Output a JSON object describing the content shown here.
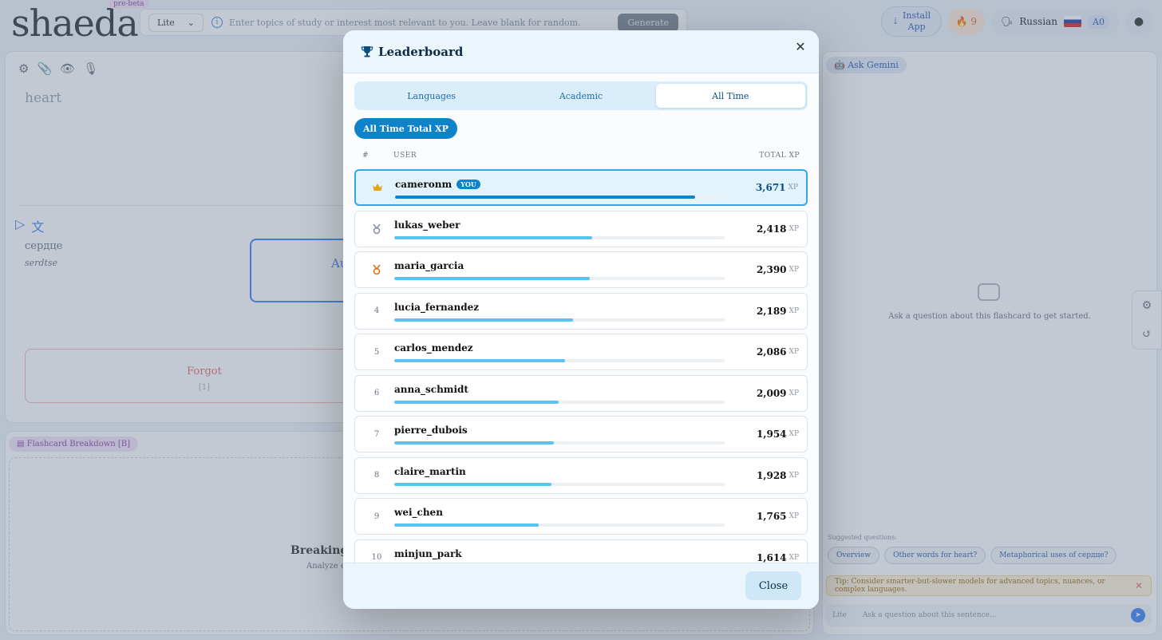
{
  "app": {
    "logo": "shaeda",
    "badge": "pre-beta",
    "model": "Lite",
    "topic_placeholder": "Enter topics of study or interest most relevant to you. Leave blank for random.",
    "generate_label": "Generate",
    "install_label": "Install App",
    "streak": "9",
    "language": "Russian",
    "level": "A0"
  },
  "card": {
    "front": "heart",
    "back": "сердце",
    "translit": "serdtse",
    "answer_partial": "Au",
    "forgot_label": "Forgot",
    "forgot_key": "[1]"
  },
  "breakdown": {
    "tag": "Flashcard Breakdown",
    "tag_key": "[B]",
    "title_partial": "Breaking th",
    "sub_partial": "Analyze eac"
  },
  "gemini": {
    "tag": "Ask Gemini",
    "empty_text": "Ask a question about this flashcard to get started.",
    "suggest_label": "Suggested questions:",
    "chips": [
      "Overview",
      "Other words for heart?",
      "Metaphorical uses of сердце?"
    ],
    "tip": "Tip: Consider smarter-but-slower models for advanced topics, nuances, or complex languages.",
    "ask_model": "Lite",
    "ask_placeholder": "Ask a question about this sentence..."
  },
  "modal": {
    "title": "Leaderboard",
    "tabs": [
      "Languages",
      "Academic",
      "All Time"
    ],
    "active_tab": "All Time",
    "filter_label": "All Time Total XP",
    "columns": {
      "rank": "#",
      "user": "USER",
      "xp": "TOTAL XP"
    },
    "xp_unit": "XP",
    "you_badge": "YOU",
    "close_label": "Close",
    "rows": [
      {
        "rank": "1",
        "medal": "crown",
        "user": "cameronm",
        "xp": "3,671",
        "xp_value": 3671,
        "is_me": true
      },
      {
        "rank": "2",
        "medal": "silver-medal",
        "user": "lukas_weber",
        "xp": "2,418",
        "xp_value": 2418
      },
      {
        "rank": "3",
        "medal": "bronze-medal",
        "user": "maria_garcia",
        "xp": "2,390",
        "xp_value": 2390
      },
      {
        "rank": "4",
        "user": "lucia_fernandez",
        "xp": "2,189",
        "xp_value": 2189
      },
      {
        "rank": "5",
        "user": "carlos_mendez",
        "xp": "2,086",
        "xp_value": 2086
      },
      {
        "rank": "6",
        "user": "anna_schmidt",
        "xp": "2,009",
        "xp_value": 2009
      },
      {
        "rank": "7",
        "user": "pierre_dubois",
        "xp": "1,954",
        "xp_value": 1954
      },
      {
        "rank": "8",
        "user": "claire_martin",
        "xp": "1,928",
        "xp_value": 1928
      },
      {
        "rank": "9",
        "user": "wei_chen",
        "xp": "1,765",
        "xp_value": 1765
      },
      {
        "rank": "10",
        "user": "minjun_park",
        "xp": "1,614",
        "xp_value": 1614
      }
    ]
  },
  "colors": {
    "accent": "#0f83c9",
    "bar": "#5cc2f0",
    "crown": "#e8a317",
    "silver": "#8a8fa3",
    "bronze": "#d9731a"
  }
}
